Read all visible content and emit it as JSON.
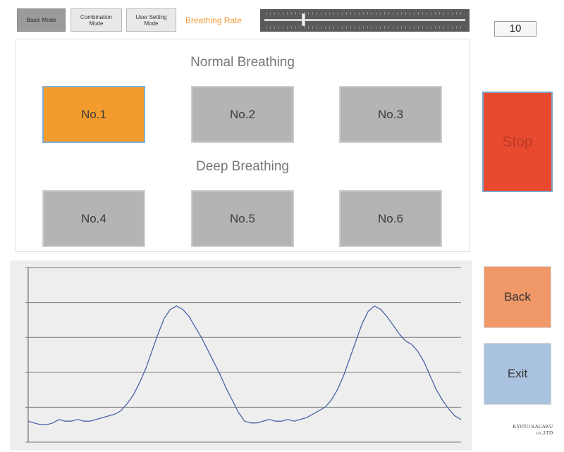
{
  "modes": [
    {
      "label": "Basic Mode",
      "active": true
    },
    {
      "label": "Combination Mode",
      "active": false
    },
    {
      "label": "User Setting Mode",
      "active": false
    }
  ],
  "breathing_rate": {
    "label": "Breathing Rate",
    "value": "10",
    "slider_fraction": 0.19
  },
  "patterns": {
    "normal_title": "Normal Breathing",
    "deep_title": "Deep Breathing",
    "buttons": [
      {
        "label": "No.1",
        "selected": true
      },
      {
        "label": "No.2",
        "selected": false
      },
      {
        "label": "No.3",
        "selected": false
      },
      {
        "label": "No.4",
        "selected": false
      },
      {
        "label": "No.5",
        "selected": false
      },
      {
        "label": "No.6",
        "selected": false
      }
    ]
  },
  "actions": {
    "stop_label": "Stop",
    "back_label": "Back",
    "exit_label": "Exit"
  },
  "graph": {
    "waveform": [
      0.12,
      0.11,
      0.1,
      0.1,
      0.11,
      0.13,
      0.12,
      0.12,
      0.13,
      0.12,
      0.12,
      0.13,
      0.14,
      0.15,
      0.16,
      0.18,
      0.22,
      0.27,
      0.34,
      0.42,
      0.52,
      0.62,
      0.71,
      0.76,
      0.78,
      0.76,
      0.72,
      0.66,
      0.6,
      0.53,
      0.46,
      0.39,
      0.31,
      0.24,
      0.17,
      0.12,
      0.11,
      0.11,
      0.12,
      0.13,
      0.12,
      0.12,
      0.13,
      0.12,
      0.13,
      0.14,
      0.16,
      0.18,
      0.2,
      0.24,
      0.3,
      0.38,
      0.48,
      0.58,
      0.68,
      0.75,
      0.78,
      0.76,
      0.72,
      0.67,
      0.62,
      0.58,
      0.56,
      0.52,
      0.46,
      0.38,
      0.3,
      0.24,
      0.19,
      0.15,
      0.13
    ],
    "gridlines": 6
  },
  "company": {
    "line1": "KYOTO KAGAKU",
    "line2": "co.,LTD"
  },
  "colors": {
    "selected_pattern": "#f39c2e",
    "stop": "#e84a2f",
    "back": "#f09868",
    "exit": "#a9c3df",
    "waveform": "#4a62a8",
    "rate_label": "#f09a3a"
  }
}
